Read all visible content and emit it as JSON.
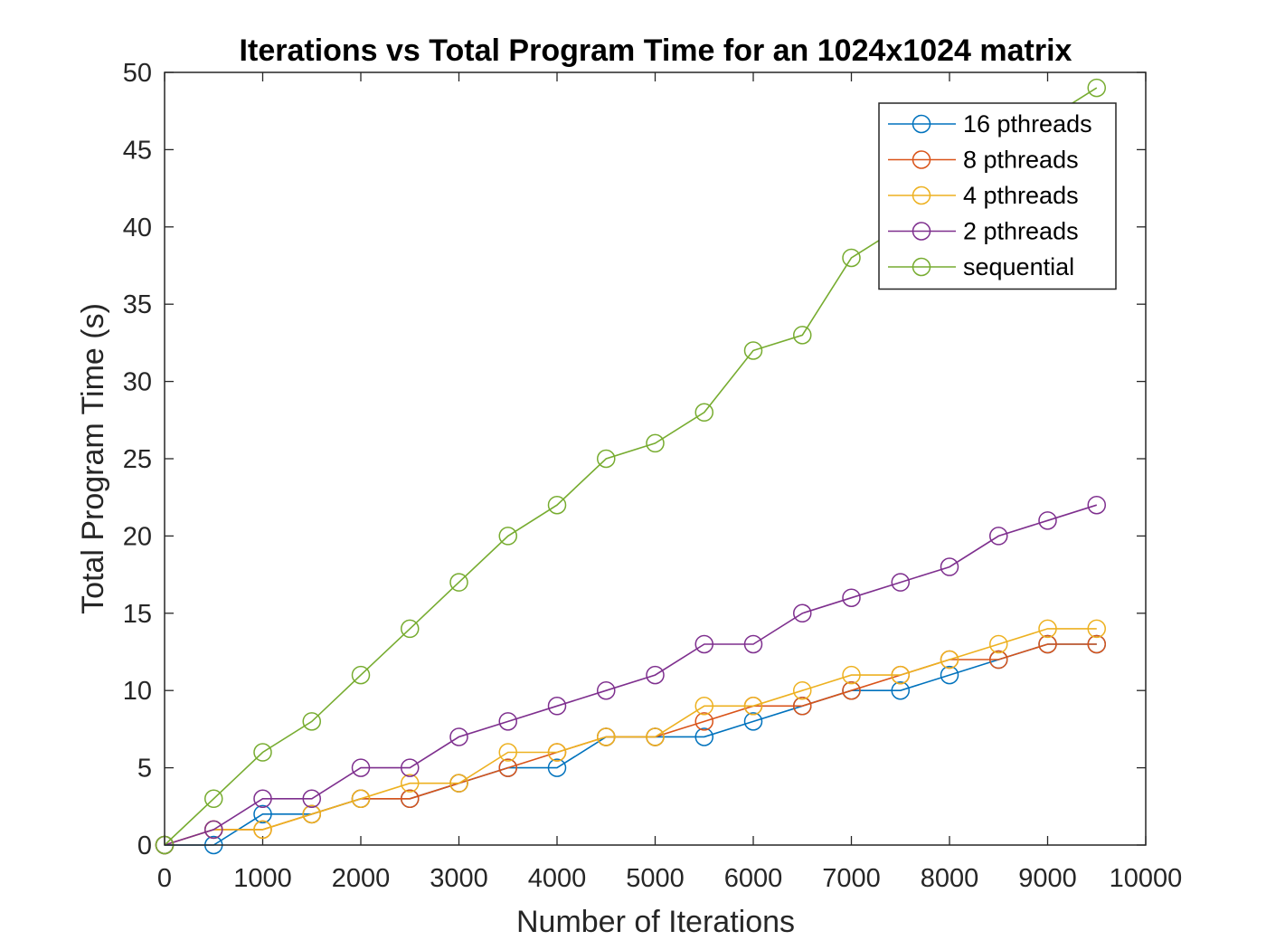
{
  "chart_data": {
    "type": "line",
    "title": "Iterations vs Total Program Time for an 1024x1024 matrix",
    "xlabel": "Number of Iterations",
    "ylabel": "Total Program Time (s)",
    "xlim": [
      0,
      10000
    ],
    "ylim": [
      0,
      50
    ],
    "xticks": [
      "0",
      "1000",
      "2000",
      "3000",
      "4000",
      "5000",
      "6000",
      "7000",
      "8000",
      "9000",
      "10000"
    ],
    "yticks": [
      "0",
      "5",
      "10",
      "15",
      "20",
      "25",
      "30",
      "35",
      "40",
      "45",
      "50"
    ],
    "grid": false,
    "legend_position": "top-right",
    "marker": "circle",
    "x": [
      0,
      500,
      1000,
      1500,
      2000,
      2500,
      3000,
      3500,
      4000,
      4500,
      5000,
      5500,
      6000,
      6500,
      7000,
      7500,
      8000,
      8500,
      9000,
      9500
    ],
    "series": [
      {
        "name": "16 pthreads",
        "color": "#0072BD",
        "values": [
          0,
          0,
          2,
          2,
          3,
          3,
          4,
          5,
          5,
          7,
          7,
          7,
          8,
          9,
          10,
          10,
          11,
          12,
          13,
          13
        ]
      },
      {
        "name": "8 pthreads",
        "color": "#D95319",
        "values": [
          0,
          1,
          1,
          2,
          3,
          3,
          4,
          5,
          6,
          7,
          7,
          8,
          9,
          9,
          10,
          11,
          12,
          12,
          13,
          13
        ]
      },
      {
        "name": "4 pthreads",
        "color": "#EDB120",
        "values": [
          0,
          1,
          1,
          2,
          3,
          4,
          4,
          6,
          6,
          7,
          7,
          9,
          9,
          10,
          11,
          11,
          12,
          13,
          14,
          14
        ]
      },
      {
        "name": "2 pthreads",
        "color": "#7E2F8E",
        "values": [
          0,
          1,
          3,
          3,
          5,
          5,
          7,
          8,
          9,
          10,
          11,
          13,
          13,
          15,
          16,
          17,
          18,
          20,
          21,
          22
        ]
      },
      {
        "name": "sequential",
        "color": "#77AC30",
        "values": [
          0,
          3,
          6,
          8,
          11,
          14,
          17,
          20,
          22,
          25,
          26,
          28,
          32,
          33,
          38,
          40,
          43,
          45,
          47,
          49
        ]
      }
    ]
  }
}
